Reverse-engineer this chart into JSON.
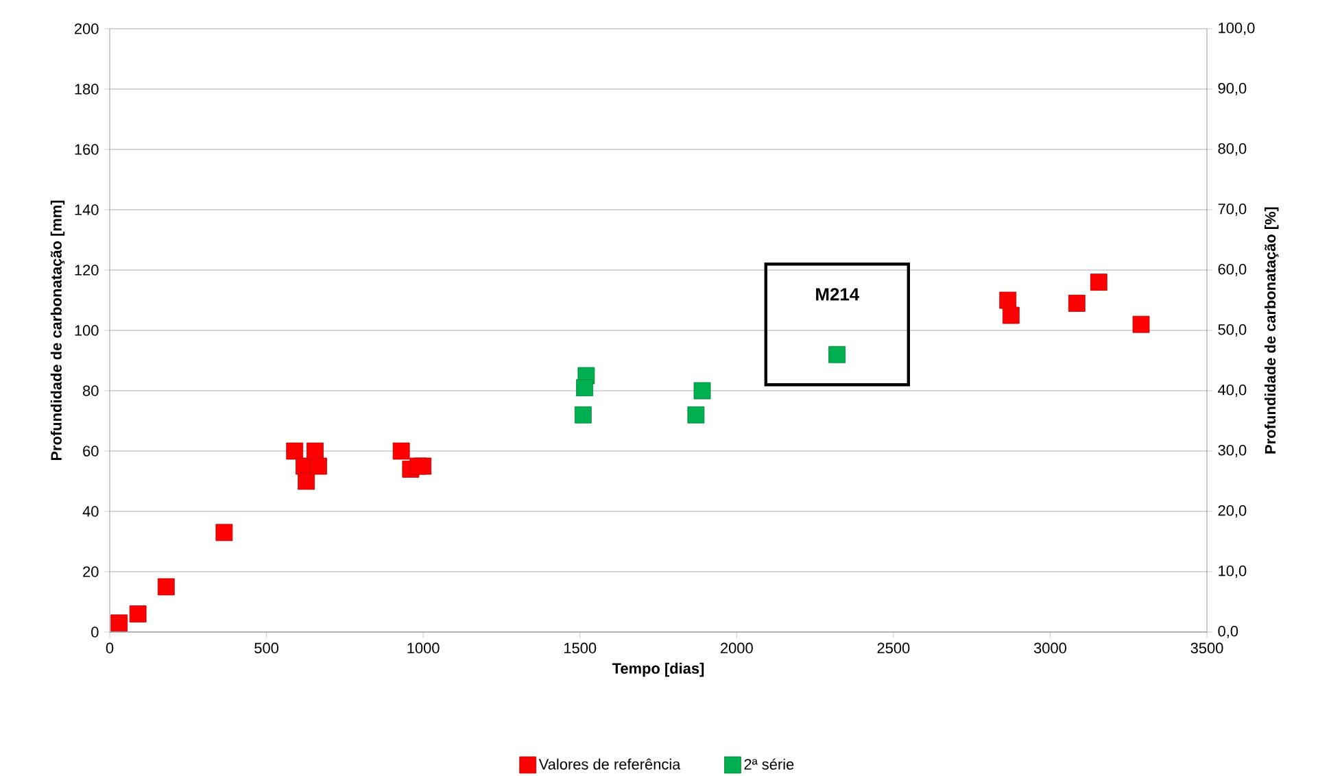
{
  "chart_data": {
    "type": "scatter",
    "xlabel": "Tempo [dias]",
    "ylabel": "Profundidade de carbonatação [mm]",
    "y2label": "Profundidade de carbonatação [%]",
    "xlim": [
      0,
      3500
    ],
    "xticks": [
      0,
      500,
      1000,
      1500,
      2000,
      2500,
      3000,
      3500
    ],
    "ylim": [
      0,
      200
    ],
    "yticks": [
      0,
      20,
      40,
      60,
      80,
      100,
      120,
      140,
      160,
      180,
      200
    ],
    "y2lim": [
      0,
      100
    ],
    "y2ticks": [
      {
        "value": 0,
        "label": "0,0"
      },
      {
        "value": 10,
        "label": "10,0"
      },
      {
        "value": 20,
        "label": "20,0"
      },
      {
        "value": 30,
        "label": "30,0"
      },
      {
        "value": 40,
        "label": "40,0"
      },
      {
        "value": 50,
        "label": "50,0"
      },
      {
        "value": 60,
        "label": "60,0"
      },
      {
        "value": 70,
        "label": "70,0"
      },
      {
        "value": 80,
        "label": "80,0"
      },
      {
        "value": 90,
        "label": "90,0"
      },
      {
        "value": 100,
        "label": "100,0"
      }
    ],
    "grid": "y",
    "legend": "bottom",
    "marker": "square",
    "annotations": [
      "M214"
    ],
    "series": [
      {
        "name": "Valores de referência",
        "color": "#ff0000",
        "x": [
          30,
          90,
          180,
          365,
          590,
          620,
          627,
          655,
          666,
          930,
          960,
          999,
          2865,
          2875,
          3085,
          3155,
          3290,
          984
        ],
        "values": [
          3,
          6,
          15,
          33,
          60,
          55,
          50,
          60,
          55,
          60,
          54,
          55,
          110,
          105,
          109,
          116,
          102,
          55
        ]
      },
      {
        "name": "2ª série",
        "color": "#00b050",
        "x": [
          1520,
          1515,
          1510,
          1890,
          1870,
          2320
        ],
        "values": [
          85,
          81,
          72,
          80,
          72,
          92
        ]
      }
    ]
  }
}
